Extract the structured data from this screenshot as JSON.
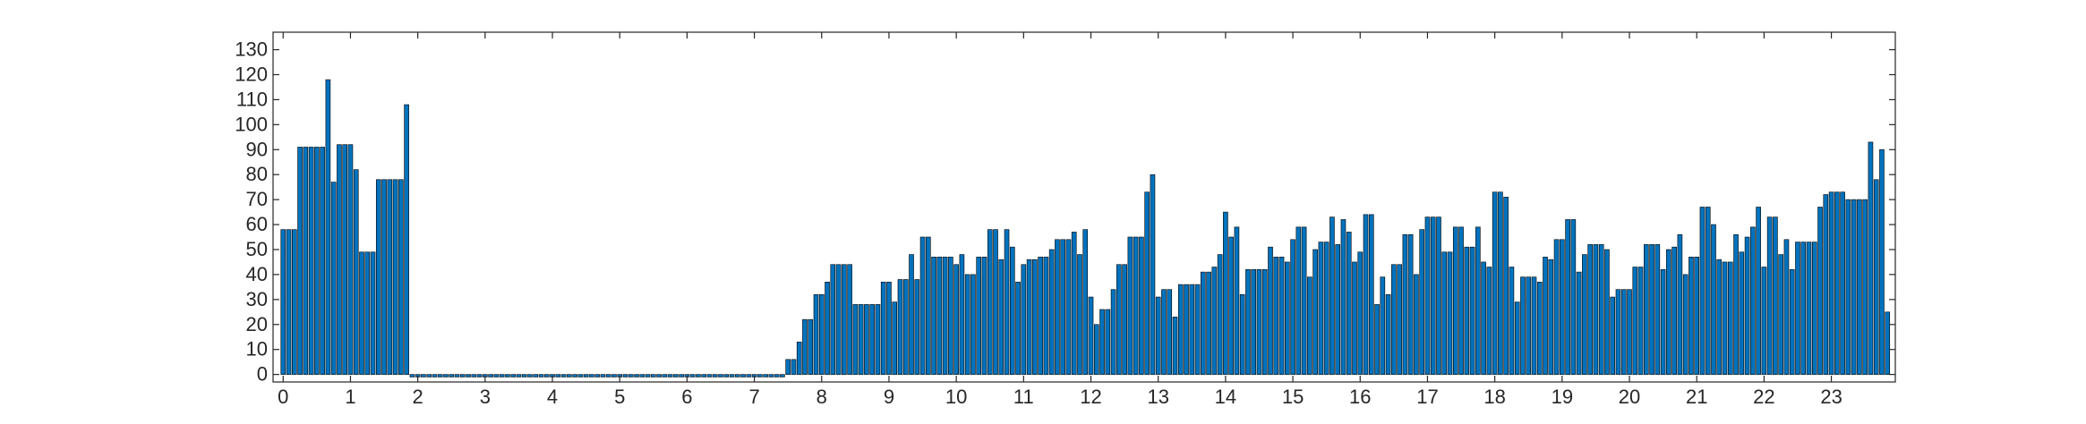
{
  "chart_data": {
    "type": "bar",
    "title": "",
    "xlabel": "",
    "ylabel": "",
    "xlim": [
      -0.15,
      23.95
    ],
    "ylim": [
      -3,
      137
    ],
    "grid": false,
    "legend": "none",
    "box": true,
    "bar_color": "#0072BD",
    "edge_color": "#000000",
    "bar_width_fraction": 0.8,
    "x_start": 0.0,
    "x_step": 0.0833333,
    "x_ticks": [
      0,
      1,
      2,
      3,
      4,
      5,
      6,
      7,
      8,
      9,
      10,
      11,
      12,
      13,
      14,
      15,
      16,
      17,
      18,
      19,
      20,
      21,
      22,
      23
    ],
    "x_tick_labels": [
      "0",
      "1",
      "2",
      "3",
      "4",
      "5",
      "6",
      "7",
      "8",
      "9",
      "10",
      "11",
      "12",
      "13",
      "14",
      "15",
      "16",
      "17",
      "18",
      "19",
      "20",
      "21",
      "22",
      "23"
    ],
    "y_ticks": [
      0,
      10,
      20,
      30,
      40,
      50,
      60,
      70,
      80,
      90,
      100,
      110,
      120,
      130
    ],
    "y_tick_labels": [
      "0",
      "10",
      "20",
      "30",
      "40",
      "50",
      "60",
      "70",
      "80",
      "90",
      "100",
      "110",
      "120",
      "130"
    ],
    "values": [
      58,
      58,
      58,
      91,
      91,
      91,
      91,
      91,
      118,
      77,
      92,
      92,
      92,
      82,
      49,
      49,
      49,
      78,
      78,
      78,
      78,
      78,
      108,
      -1,
      -1,
      -1,
      -1,
      -1,
      -1,
      -1,
      -1,
      -1,
      -1,
      -1,
      -1,
      -1,
      -1,
      -1,
      -1,
      -1,
      -1,
      -1,
      -1,
      -1,
      -1,
      -1,
      -1,
      -1,
      -1,
      -1,
      -1,
      -1,
      -1,
      -1,
      -1,
      -1,
      -1,
      -1,
      -1,
      -1,
      -1,
      -1,
      -1,
      -1,
      -1,
      -1,
      -1,
      -1,
      -1,
      -1,
      -1,
      -1,
      -1,
      -1,
      -1,
      -1,
      -1,
      -1,
      -1,
      -1,
      -1,
      -1,
      -1,
      -1,
      -1,
      -1,
      -1,
      -1,
      -1,
      -1,
      6,
      6,
      13,
      22,
      22,
      32,
      32,
      37,
      44,
      44,
      44,
      44,
      28,
      28,
      28,
      28,
      28,
      37,
      37,
      29,
      38,
      38,
      48,
      38,
      55,
      55,
      47,
      47,
      47,
      47,
      44,
      48,
      40,
      40,
      47,
      47,
      58,
      58,
      46,
      58,
      51,
      37,
      44,
      46,
      46,
      47,
      47,
      50,
      54,
      54,
      54,
      57,
      48,
      58,
      31,
      20,
      26,
      26,
      34,
      44,
      44,
      55,
      55,
      55,
      73,
      80,
      31,
      34,
      34,
      23,
      36,
      36,
      36,
      36,
      41,
      41,
      43,
      48,
      65,
      55,
      59,
      32,
      42,
      42,
      42,
      42,
      51,
      47,
      47,
      45,
      54,
      59,
      59,
      39,
      50,
      53,
      53,
      63,
      52,
      62,
      57,
      45,
      49,
      64,
      64,
      28,
      39,
      32,
      44,
      44,
      56,
      56,
      40,
      58,
      63,
      63,
      63,
      49,
      49,
      59,
      59,
      51,
      51,
      59,
      45,
      43,
      73,
      73,
      71,
      43,
      29,
      39,
      39,
      39,
      37,
      47,
      46,
      54,
      54,
      62,
      62,
      41,
      48,
      52,
      52,
      52,
      50,
      31,
      34,
      34,
      34,
      43,
      43,
      52,
      52,
      52,
      42,
      50,
      51,
      56,
      40,
      47,
      47,
      67,
      67,
      60,
      46,
      45,
      45,
      56,
      49,
      55,
      59,
      67,
      43,
      63,
      63,
      48,
      54,
      42,
      53,
      53,
      53,
      53,
      67,
      72,
      73,
      73,
      73,
      70,
      70,
      70,
      70,
      93,
      78,
      90,
      25
    ]
  }
}
